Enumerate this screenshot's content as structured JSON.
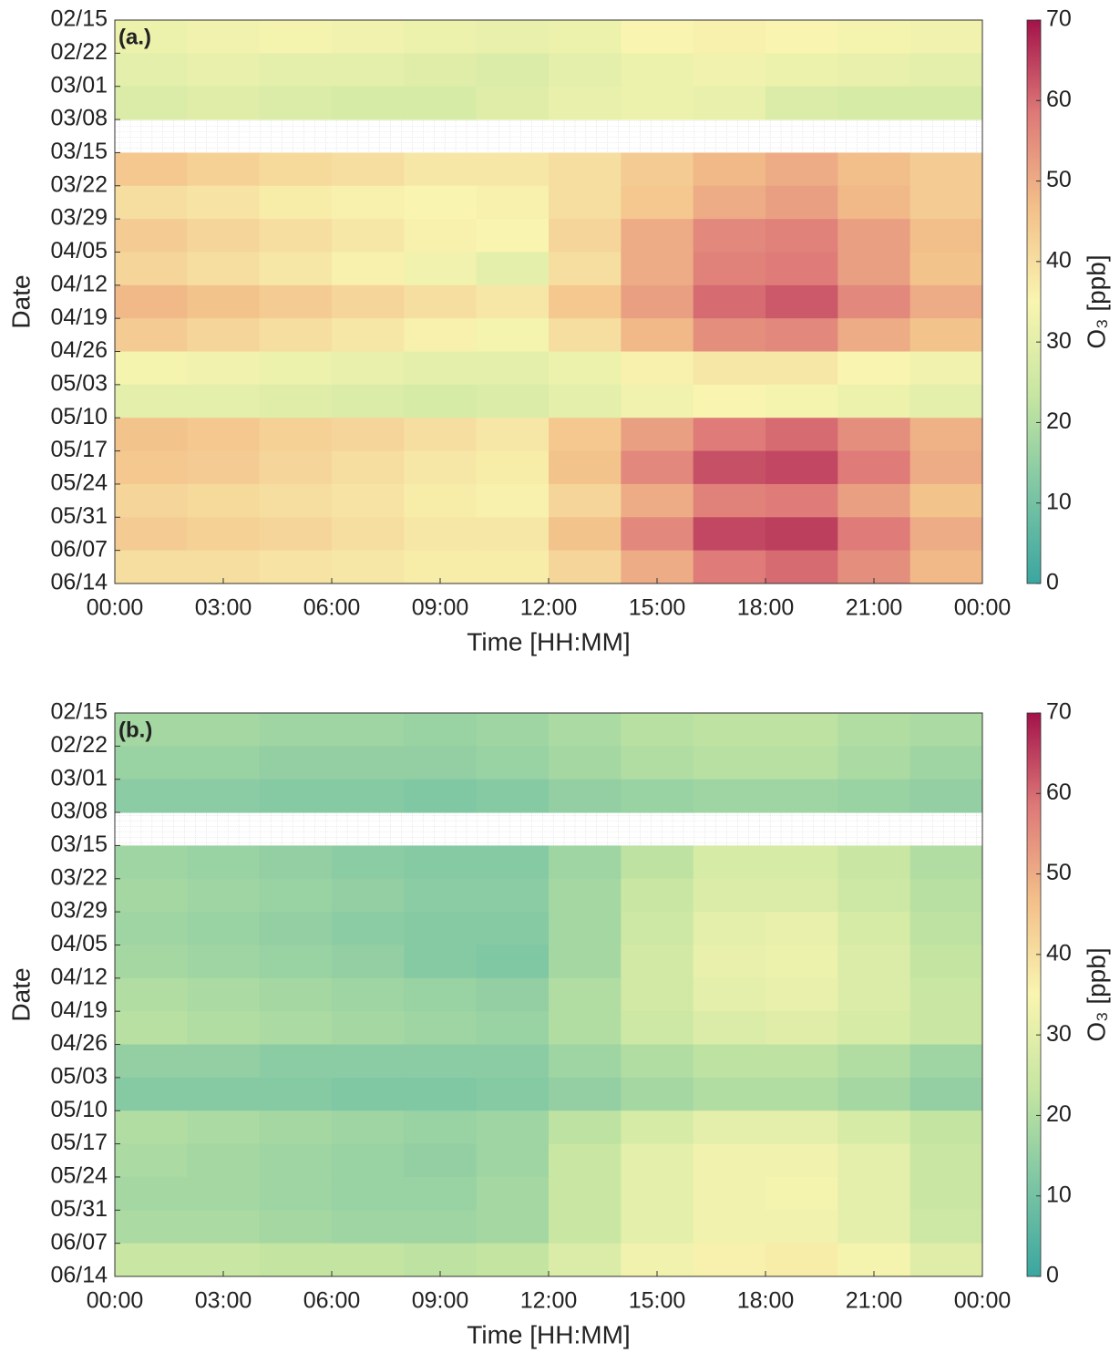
{
  "chart_data": [
    {
      "type": "heatmap",
      "panel_label": "(a.)",
      "xlabel": "Time [HH:MM]",
      "ylabel": "Date",
      "xlim": [
        0,
        24
      ],
      "xticks": [
        {
          "value": 0,
          "label": "00:00"
        },
        {
          "value": 3,
          "label": "03:00"
        },
        {
          "value": 6,
          "label": "06:00"
        },
        {
          "value": 9,
          "label": "09:00"
        },
        {
          "value": 12,
          "label": "12:00"
        },
        {
          "value": 15,
          "label": "15:00"
        },
        {
          "value": 18,
          "label": "18:00"
        },
        {
          "value": 21,
          "label": "21:00"
        },
        {
          "value": 24,
          "label": "00:00"
        }
      ],
      "date_ticks": [
        "02/15",
        "02/22",
        "03/01",
        "03/08",
        "03/15",
        "03/22",
        "03/29",
        "04/05",
        "04/12",
        "04/19",
        "04/26",
        "05/03",
        "05/10",
        "05/17",
        "05/24",
        "05/31",
        "06/07",
        "06/14"
      ],
      "values": [
        [
          32,
          33,
          34,
          33,
          32,
          31,
          32,
          35,
          36,
          35,
          34,
          33
        ],
        [
          30,
          31,
          30,
          30,
          29,
          28,
          30,
          32,
          33,
          32,
          31,
          30
        ],
        [
          28,
          29,
          28,
          27,
          27,
          29,
          31,
          32,
          31,
          28,
          27,
          27
        ],
        [
          null,
          null,
          null,
          null,
          null,
          null,
          null,
          null,
          null,
          null,
          null,
          null
        ],
        [
          45,
          43,
          41,
          40,
          38,
          38,
          40,
          44,
          48,
          50,
          47,
          44
        ],
        [
          40,
          39,
          37,
          36,
          35,
          36,
          40,
          45,
          50,
          52,
          48,
          44
        ],
        [
          44,
          42,
          40,
          38,
          36,
          35,
          42,
          50,
          56,
          57,
          52,
          47
        ],
        [
          42,
          40,
          38,
          36,
          33,
          30,
          40,
          50,
          57,
          58,
          52,
          46
        ],
        [
          48,
          46,
          44,
          42,
          40,
          38,
          45,
          52,
          60,
          62,
          56,
          50
        ],
        [
          44,
          42,
          40,
          38,
          36,
          34,
          40,
          48,
          55,
          56,
          50,
          46
        ],
        [
          34,
          33,
          32,
          31,
          30,
          30,
          32,
          36,
          38,
          38,
          35,
          33
        ],
        [
          30,
          30,
          29,
          28,
          27,
          28,
          30,
          33,
          35,
          34,
          32,
          30
        ],
        [
          46,
          45,
          43,
          42,
          40,
          38,
          45,
          52,
          58,
          60,
          55,
          49
        ],
        [
          45,
          44,
          42,
          40,
          38,
          37,
          46,
          56,
          63,
          64,
          58,
          50
        ],
        [
          42,
          41,
          40,
          39,
          37,
          36,
          42,
          50,
          57,
          58,
          52,
          46
        ],
        [
          44,
          43,
          42,
          40,
          38,
          38,
          46,
          56,
          64,
          65,
          58,
          50
        ],
        [
          40,
          40,
          39,
          38,
          37,
          37,
          42,
          50,
          58,
          60,
          55,
          48
        ]
      ],
      "colorbar_label": "O₃ [ppb]",
      "clim": [
        0,
        70
      ],
      "cticks": [
        0,
        10,
        20,
        30,
        40,
        50,
        60,
        70
      ],
      "colormap": [
        "#3aa6a0",
        "#7ec6a4",
        "#c6e6a2",
        "#f9f5b0",
        "#f3c08a",
        "#de7a78",
        "#a3124a"
      ]
    },
    {
      "type": "heatmap",
      "panel_label": "(b.)",
      "xlabel": "Time [HH:MM]",
      "ylabel": "Date",
      "xlim": [
        0,
        24
      ],
      "xticks": [
        {
          "value": 0,
          "label": "00:00"
        },
        {
          "value": 3,
          "label": "03:00"
        },
        {
          "value": 6,
          "label": "06:00"
        },
        {
          "value": 9,
          "label": "09:00"
        },
        {
          "value": 12,
          "label": "12:00"
        },
        {
          "value": 15,
          "label": "15:00"
        },
        {
          "value": 18,
          "label": "18:00"
        },
        {
          "value": 21,
          "label": "21:00"
        },
        {
          "value": 24,
          "label": "00:00"
        }
      ],
      "date_ticks": [
        "02/15",
        "02/22",
        "03/01",
        "03/08",
        "03/15",
        "03/22",
        "03/29",
        "04/05",
        "04/12",
        "04/19",
        "04/26",
        "05/03",
        "05/10",
        "05/17",
        "05/24",
        "05/31",
        "06/07",
        "06/14"
      ],
      "values": [
        [
          18,
          18,
          17,
          17,
          16,
          17,
          19,
          21,
          22,
          22,
          20,
          19
        ],
        [
          16,
          16,
          15,
          15,
          15,
          16,
          18,
          20,
          21,
          21,
          19,
          17
        ],
        [
          14,
          14,
          13,
          13,
          12,
          13,
          15,
          16,
          17,
          17,
          16,
          15
        ],
        [
          null,
          null,
          null,
          null,
          null,
          null,
          null,
          null,
          null,
          null,
          null,
          null
        ],
        [
          17,
          16,
          15,
          14,
          13,
          13,
          17,
          22,
          27,
          27,
          24,
          20
        ],
        [
          18,
          17,
          16,
          15,
          14,
          14,
          18,
          24,
          28,
          28,
          25,
          21
        ],
        [
          17,
          16,
          15,
          14,
          13,
          13,
          18,
          25,
          30,
          31,
          27,
          22
        ],
        [
          18,
          17,
          16,
          15,
          13,
          12,
          18,
          26,
          31,
          32,
          28,
          23
        ],
        [
          20,
          19,
          18,
          17,
          16,
          15,
          20,
          26,
          30,
          31,
          28,
          24
        ],
        [
          21,
          20,
          19,
          18,
          17,
          16,
          20,
          25,
          28,
          29,
          27,
          24
        ],
        [
          15,
          15,
          14,
          14,
          14,
          14,
          17,
          20,
          22,
          22,
          20,
          17
        ],
        [
          13,
          13,
          13,
          12,
          12,
          13,
          15,
          18,
          20,
          20,
          18,
          15
        ],
        [
          20,
          19,
          18,
          17,
          16,
          17,
          22,
          27,
          30,
          30,
          27,
          23
        ],
        [
          19,
          18,
          17,
          16,
          15,
          17,
          24,
          30,
          33,
          33,
          30,
          24
        ],
        [
          18,
          18,
          17,
          16,
          16,
          18,
          24,
          30,
          33,
          34,
          30,
          24
        ],
        [
          19,
          19,
          18,
          17,
          17,
          18,
          24,
          30,
          33,
          33,
          30,
          25
        ],
        [
          24,
          24,
          23,
          23,
          22,
          23,
          28,
          33,
          36,
          37,
          34,
          29
        ]
      ],
      "colorbar_label": "O₃ [ppb]",
      "clim": [
        0,
        70
      ],
      "cticks": [
        0,
        10,
        20,
        30,
        40,
        50,
        60,
        70
      ],
      "colormap": [
        "#3aa6a0",
        "#7ec6a4",
        "#c6e6a2",
        "#f9f5b0",
        "#f3c08a",
        "#de7a78",
        "#a3124a"
      ]
    }
  ]
}
